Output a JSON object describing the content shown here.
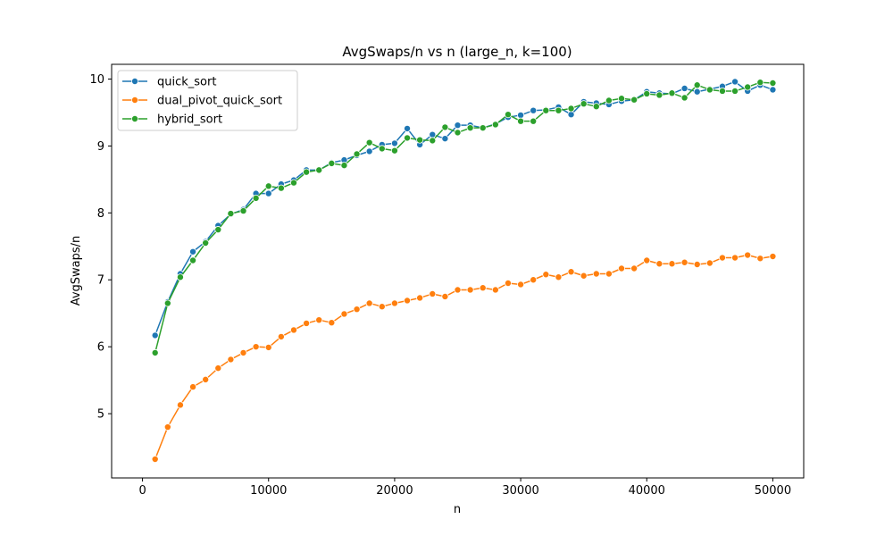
{
  "chart_data": {
    "type": "line",
    "title": "AvgSwaps/n vs n (large_n, k=100)",
    "xlabel": "n",
    "ylabel": "AvgSwaps/n",
    "xlim": [
      -2450,
      52450
    ],
    "ylim": [
      4.04,
      10.22
    ],
    "xticks": [
      0,
      10000,
      20000,
      30000,
      40000,
      50000
    ],
    "yticks": [
      5,
      6,
      7,
      8,
      9,
      10
    ],
    "grid": false,
    "legend_position": "top-left",
    "x": [
      1000,
      2000,
      3000,
      4000,
      5000,
      6000,
      7000,
      8000,
      9000,
      10000,
      11000,
      12000,
      13000,
      14000,
      15000,
      16000,
      17000,
      18000,
      19000,
      20000,
      21000,
      22000,
      23000,
      24000,
      25000,
      26000,
      27000,
      28000,
      29000,
      30000,
      31000,
      32000,
      33000,
      34000,
      35000,
      36000,
      37000,
      38000,
      39000,
      40000,
      41000,
      42000,
      43000,
      44000,
      45000,
      46000,
      47000,
      48000,
      49000,
      50000
    ],
    "series": [
      {
        "name": "quick_sort",
        "color": "#1f77b4",
        "values": [
          6.17,
          6.67,
          7.09,
          7.42,
          7.57,
          7.81,
          7.98,
          8.05,
          8.29,
          8.29,
          8.43,
          8.49,
          8.64,
          8.64,
          8.75,
          8.79,
          8.86,
          8.92,
          9.02,
          9.04,
          9.26,
          9.02,
          9.17,
          9.11,
          9.31,
          9.31,
          9.27,
          9.33,
          9.43,
          9.46,
          9.53,
          9.54,
          9.58,
          9.47,
          9.66,
          9.64,
          9.62,
          9.67,
          9.69,
          9.81,
          9.79,
          9.78,
          9.86,
          9.81,
          9.85,
          9.89,
          9.96,
          9.82,
          9.91,
          9.84
        ]
      },
      {
        "name": "dual_pivot_quick_sort",
        "color": "#ff7f0e",
        "values": [
          4.32,
          4.8,
          5.13,
          5.4,
          5.51,
          5.68,
          5.81,
          5.91,
          6.0,
          5.99,
          6.15,
          6.25,
          6.35,
          6.4,
          6.36,
          6.49,
          6.56,
          6.65,
          6.6,
          6.65,
          6.69,
          6.73,
          6.79,
          6.75,
          6.85,
          6.85,
          6.88,
          6.85,
          6.95,
          6.93,
          7.0,
          7.08,
          7.04,
          7.12,
          7.06,
          7.09,
          7.09,
          7.17,
          7.17,
          7.29,
          7.24,
          7.24,
          7.26,
          7.23,
          7.25,
          7.33,
          7.33,
          7.37,
          7.32,
          7.35
        ]
      },
      {
        "name": "hybrid_sort",
        "color": "#2ca02c",
        "values": [
          5.91,
          6.65,
          7.04,
          7.29,
          7.55,
          7.75,
          7.99,
          8.03,
          8.22,
          8.4,
          8.37,
          8.45,
          8.61,
          8.64,
          8.74,
          8.71,
          8.88,
          9.05,
          8.96,
          8.93,
          9.12,
          9.09,
          9.08,
          9.28,
          9.2,
          9.27,
          9.27,
          9.32,
          9.47,
          9.37,
          9.37,
          9.53,
          9.53,
          9.56,
          9.63,
          9.59,
          9.68,
          9.71,
          9.69,
          9.78,
          9.76,
          9.79,
          9.72,
          9.91,
          9.84,
          9.82,
          9.82,
          9.88,
          9.95,
          9.94
        ]
      }
    ]
  }
}
